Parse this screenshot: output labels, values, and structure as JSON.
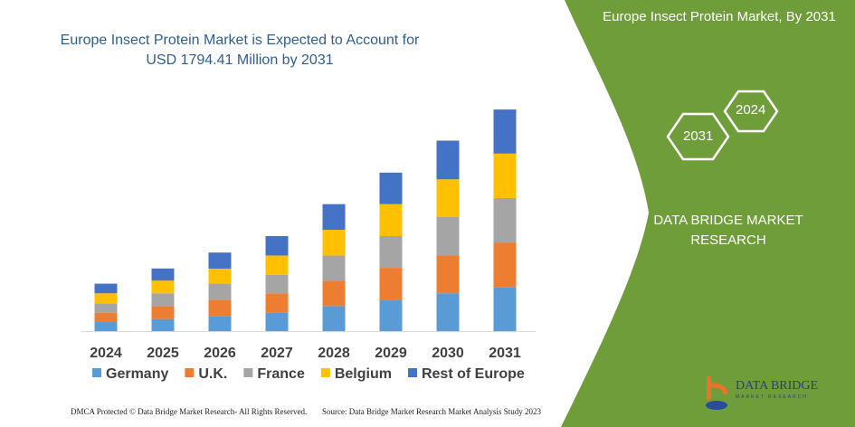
{
  "header": {
    "title": "Europe Insect Protein Market is Expected to Account for USD 1794.41 Million by 2031"
  },
  "panel": {
    "title": "Europe Insect Protein Market, By 2031",
    "hex_start": "2024",
    "hex_end": "2031",
    "company": "DATA BRIDGE MARKET RESEARCH",
    "logo_text": "DATA BRIDGE",
    "logo_sub": "MARKET RESEARCH",
    "green": "#6f9d3a"
  },
  "footer": {
    "left": "DMCA Protected © Data Bridge Market Research-  All Rights Reserved.",
    "right": "Source: Data Bridge Market Research  Market Analysis Study 2023"
  },
  "chart_data": {
    "type": "bar",
    "stacked": true,
    "categories": [
      "2024",
      "2025",
      "2026",
      "2027",
      "2028",
      "2029",
      "2030",
      "2031"
    ],
    "series": [
      {
        "name": "Germany",
        "color": "#5b9bd5",
        "values": [
          73,
          98,
          122,
          149,
          203,
          255,
          306,
          357
        ]
      },
      {
        "name": "U.K.",
        "color": "#ed7d31",
        "values": [
          76,
          103,
          132,
          157,
          206,
          257,
          306,
          360
        ]
      },
      {
        "name": "France",
        "color": "#a5a5a5",
        "values": [
          76,
          105,
          130,
          149,
          203,
          257,
          311,
          360
        ]
      },
      {
        "name": "Belgium",
        "color": "#ffc000",
        "values": [
          81,
          103,
          122,
          157,
          208,
          259,
          306,
          360
        ]
      },
      {
        "name": "Rest of Europe",
        "color": "#4472c4",
        "values": [
          78,
          98,
          130,
          157,
          208,
          255,
          313,
          357
        ]
      }
    ],
    "ylabel": "",
    "xlabel": "",
    "legend": "bottom",
    "grid": false,
    "y_axis_shown": false
  }
}
